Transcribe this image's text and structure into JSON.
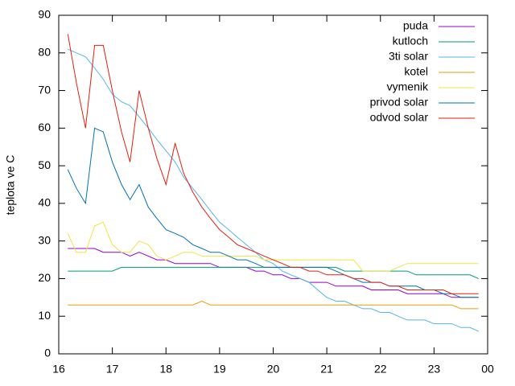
{
  "chart_data": {
    "type": "line",
    "y_label": "teplota ve C",
    "x": [
      16.17,
      16.33,
      16.5,
      16.67,
      16.83,
      17,
      17.17,
      17.33,
      17.5,
      17.67,
      17.83,
      18,
      18.17,
      18.33,
      18.5,
      18.67,
      18.83,
      19,
      19.17,
      19.33,
      19.5,
      19.67,
      19.83,
      20,
      20.17,
      20.33,
      20.5,
      20.67,
      20.83,
      21,
      21.17,
      21.33,
      21.5,
      21.67,
      21.83,
      22,
      22.17,
      22.33,
      22.5,
      22.67,
      22.83,
      23,
      23.17,
      23.33,
      23.5,
      23.67,
      23.83
    ],
    "xlim": [
      16,
      24
    ],
    "xticks": [
      16,
      17,
      18,
      19,
      20,
      21,
      22,
      23,
      {
        "value": 24,
        "label": "00"
      }
    ],
    "ylim": [
      0,
      90
    ],
    "yticks": [
      0,
      10,
      20,
      30,
      40,
      50,
      60,
      70,
      80,
      90
    ],
    "legend": "top-right",
    "series": [
      {
        "name": "puda",
        "color": "#9400d3",
        "values": [
          28,
          28,
          28,
          28,
          27,
          27,
          27,
          26,
          27,
          26,
          25,
          25,
          24,
          24,
          24,
          24,
          24,
          23,
          23,
          23,
          23,
          22,
          22,
          21,
          21,
          20,
          20,
          19,
          19,
          19,
          18,
          18,
          18,
          18,
          17,
          17,
          17,
          17,
          16,
          16,
          16,
          16,
          16,
          15,
          15,
          15,
          15
        ]
      },
      {
        "name": "kutloch",
        "color": "#009e73",
        "values": [
          22,
          22,
          22,
          22,
          22,
          22,
          23,
          23,
          23,
          23,
          23,
          23,
          23,
          23,
          23,
          23,
          23,
          23,
          23,
          23,
          23,
          23,
          23,
          23,
          23,
          23,
          23,
          23,
          23,
          23,
          23,
          22,
          22,
          22,
          22,
          22,
          22,
          22,
          22,
          21,
          21,
          21,
          21,
          21,
          21,
          21,
          20
        ]
      },
      {
        "name": "3ti solar",
        "color": "#56b4e9",
        "values": [
          81,
          80,
          79,
          76,
          73,
          69,
          67,
          66,
          63,
          60,
          57,
          54,
          51,
          47,
          44,
          41,
          38,
          35,
          33,
          31,
          29,
          27,
          25,
          24,
          22,
          21,
          20,
          19,
          17,
          15,
          14,
          14,
          13,
          12,
          12,
          11,
          11,
          10,
          9,
          9,
          9,
          8,
          8,
          8,
          7,
          7,
          6
        ]
      },
      {
        "name": "kotel",
        "color": "#e69f00",
        "values": [
          13,
          13,
          13,
          13,
          13,
          13,
          13,
          13,
          13,
          13,
          13,
          13,
          13,
          13,
          13,
          14,
          13,
          13,
          13,
          13,
          13,
          13,
          13,
          13,
          13,
          13,
          13,
          13,
          13,
          13,
          13,
          13,
          13,
          13,
          13,
          13,
          13,
          13,
          13,
          13,
          13,
          13,
          13,
          13,
          12,
          12,
          12
        ]
      },
      {
        "name": "vymenik",
        "color": "#f0e442",
        "values": [
          32,
          27,
          27,
          34,
          35,
          29,
          27,
          27,
          30,
          29,
          26,
          25,
          26,
          27,
          27,
          26,
          26,
          26,
          26,
          26,
          26,
          26,
          25,
          25,
          25,
          25,
          25,
          25,
          25,
          25,
          25,
          25,
          25,
          22,
          22,
          22,
          22,
          23,
          24,
          24,
          24,
          24,
          24,
          24,
          24,
          24,
          24
        ]
      },
      {
        "name": "privod solar",
        "color": "#0072b2",
        "values": [
          49,
          44,
          40,
          60,
          59,
          51,
          45,
          41,
          45,
          39,
          36,
          33,
          32,
          31,
          29,
          28,
          27,
          27,
          26,
          25,
          25,
          24,
          23,
          23,
          23,
          23,
          23,
          23,
          23,
          23,
          22,
          21,
          20,
          19,
          19,
          19,
          18,
          18,
          18,
          18,
          17,
          17,
          16,
          16,
          15,
          15,
          15
        ]
      },
      {
        "name": "odvod solar",
        "color": "#e51e10",
        "values": [
          85,
          72,
          60,
          82,
          82,
          70,
          59,
          51,
          70,
          60,
          52,
          45,
          56,
          48,
          43,
          39,
          36,
          33,
          31,
          29,
          28,
          27,
          26,
          25,
          24,
          23,
          23,
          22,
          22,
          21,
          21,
          21,
          20,
          20,
          19,
          19,
          18,
          18,
          17,
          17,
          17,
          17,
          17,
          16,
          16,
          16,
          16
        ]
      }
    ]
  }
}
